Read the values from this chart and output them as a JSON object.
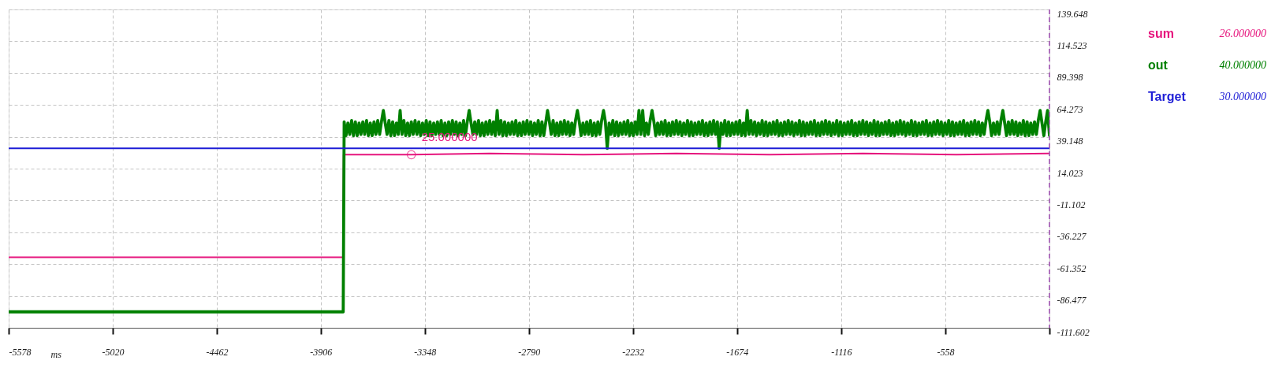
{
  "chart_data": {
    "type": "line",
    "xlabel": "ms",
    "xlim": [
      -5578,
      0
    ],
    "xticks": [
      -5578,
      -5020,
      -4462,
      -3906,
      -3348,
      -2790,
      -2232,
      -1674,
      -1116,
      -558,
      {
        "value": 0,
        "label": null
      }
    ],
    "ylim": [
      -111.602,
      139.648
    ],
    "yticks": [
      -111.602,
      -86.477,
      -61.352,
      -36.227,
      -11.102,
      14.023,
      39.148,
      64.273,
      89.398,
      114.523,
      139.648
    ],
    "grid": true,
    "legend": "right",
    "ref_lines": [
      {
        "axis": "x",
        "value": 0,
        "color": "#a355b5",
        "line_style": "dashed"
      }
    ],
    "annotations": [
      {
        "text": "25.000000",
        "x": -3420,
        "y": 25
      },
      "26.000000",
      "40.000000",
      "30.000000"
    ],
    "series": [
      {
        "name": "sum",
        "color": "#e6157d",
        "x": [
          -5578,
          -4700,
          -3786,
          -3783,
          -3420,
          -3000,
          -2500,
          -2000,
          -1500,
          -1000,
          -500,
          0
        ],
        "values": [
          -56,
          -56,
          -56,
          25,
          25,
          26,
          25,
          26,
          25,
          26,
          25,
          26
        ]
      },
      {
        "name": "out",
        "color": "#008000",
        "x": [
          -5578,
          -3785,
          -3780,
          -3770,
          -3760,
          -3750,
          -3740,
          -3730,
          -3720,
          -3710,
          -3700,
          -3690,
          -3680,
          -3670,
          -3660,
          -3650,
          -3640,
          -3630,
          -3620,
          -3610,
          -3600,
          -3590,
          -3580,
          -3570,
          -3560,
          -3550,
          -3540,
          -3530,
          -3520,
          -3510,
          -3500,
          -3490,
          -3480,
          -3470,
          -3460,
          -3450,
          -3440,
          -3430,
          -3420,
          -3410,
          -3400,
          -3390,
          -3380,
          -3370,
          -3360,
          -3350,
          -3340,
          -3330,
          -3320,
          -3310,
          -3300,
          -3290,
          -3280,
          -3270,
          -3260,
          -3250,
          -3240,
          -3230,
          -3220,
          -3210,
          -3200,
          -3190,
          -3180,
          -3170,
          -3160,
          -3150,
          -3140,
          -3130,
          -3120,
          -3110,
          -3100,
          -3090,
          -3080,
          -3070,
          -3060,
          -3050,
          -3040,
          -3030,
          -3020,
          -3010,
          -3000,
          -2990,
          -2980,
          -2970,
          -2960,
          -2950,
          -2940,
          -2930,
          -2920,
          -2910,
          -2900,
          -2890,
          -2880,
          -2870,
          -2860,
          -2850,
          -2840,
          -2830,
          -2820,
          -2810,
          -2800,
          -2790,
          -2780,
          -2770,
          -2760,
          -2750,
          -2740,
          -2730,
          -2720,
          -2710,
          -2700,
          -2690,
          -2680,
          -2670,
          -2660,
          -2650,
          -2640,
          -2630,
          -2620,
          -2610,
          -2600,
          -2590,
          -2580,
          -2570,
          -2560,
          -2550,
          -2540,
          -2530,
          -2520,
          -2510,
          -2500,
          -2490,
          -2480,
          -2470,
          -2460,
          -2450,
          -2440,
          -2430,
          -2420,
          -2410,
          -2400,
          -2390,
          -2380,
          -2370,
          -2360,
          -2350,
          -2340,
          -2330,
          -2320,
          -2310,
          -2300,
          -2290,
          -2280,
          -2270,
          -2260,
          -2250,
          -2240,
          -2230,
          -2220,
          -2210,
          -2200,
          -2190,
          -2180,
          -2170,
          -2160,
          -2150,
          -2140,
          -2130,
          -2120,
          -2110,
          -2100,
          -2090,
          -2080,
          -2070,
          -2060,
          -2050,
          -2040,
          -2030,
          -2020,
          -2010,
          -2000,
          -1990,
          -1980,
          -1970,
          -1960,
          -1950,
          -1940,
          -1930,
          -1920,
          -1910,
          -1900,
          -1890,
          -1880,
          -1870,
          -1860,
          -1850,
          -1840,
          -1830,
          -1820,
          -1810,
          -1800,
          -1790,
          -1780,
          -1770,
          -1760,
          -1750,
          -1740,
          -1730,
          -1720,
          -1710,
          -1700,
          -1690,
          -1680,
          -1670,
          -1660,
          -1650,
          -1640,
          -1630,
          -1620,
          -1610,
          -1600,
          -1590,
          -1580,
          -1570,
          -1560,
          -1550,
          -1540,
          -1530,
          -1520,
          -1510,
          -1500,
          -1490,
          -1480,
          -1470,
          -1460,
          -1450,
          -1440,
          -1430,
          -1420,
          -1410,
          -1400,
          -1390,
          -1380,
          -1370,
          -1360,
          -1350,
          -1340,
          -1330,
          -1320,
          -1310,
          -1300,
          -1290,
          -1280,
          -1270,
          -1260,
          -1250,
          -1240,
          -1230,
          -1220,
          -1210,
          -1200,
          -1190,
          -1180,
          -1170,
          -1160,
          -1150,
          -1140,
          -1130,
          -1120,
          -1110,
          -1100,
          -1090,
          -1080,
          -1070,
          -1060,
          -1050,
          -1040,
          -1030,
          -1020,
          -1010,
          -1000,
          -990,
          -980,
          -970,
          -960,
          -950,
          -940,
          -930,
          -920,
          -910,
          -900,
          -890,
          -880,
          -870,
          -860,
          -850,
          -840,
          -830,
          -820,
          -810,
          -800,
          -790,
          -780,
          -770,
          -760,
          -750,
          -740,
          -730,
          -720,
          -710,
          -700,
          -690,
          -680,
          -670,
          -660,
          -650,
          -640,
          -630,
          -620,
          -610,
          -600,
          -590,
          -580,
          -570,
          -560,
          -550,
          -540,
          -530,
          -520,
          -510,
          -500,
          -490,
          -480,
          -470,
          -460,
          -450,
          -440,
          -430,
          -420,
          -410,
          -400,
          -390,
          -380,
          -370,
          -360,
          -350,
          -340,
          -330,
          -320,
          -310,
          -300,
          -290,
          -280,
          -270,
          -260,
          -250,
          -240,
          -230,
          -220,
          -210,
          -200,
          -190,
          -180,
          -170,
          -160,
          -150,
          -140,
          -130,
          -120,
          -110,
          -100,
          -90,
          -80,
          -70,
          -60,
          -50,
          -40,
          -30,
          -20,
          -10,
          0
        ],
        "values": [
          -99,
          -99,
          51,
          40,
          50,
          41,
          52,
          40,
          51,
          40,
          50,
          41,
          51,
          41,
          52,
          40,
          50,
          40,
          51,
          41,
          52,
          41,
          51,
          60,
          50,
          41,
          52,
          40,
          51,
          40,
          50,
          41,
          60,
          41,
          52,
          40,
          50,
          40,
          51,
          41,
          52,
          41,
          51,
          40,
          50,
          41,
          52,
          40,
          51,
          40,
          50,
          41,
          51,
          41,
          52,
          40,
          50,
          40,
          51,
          41,
          52,
          41,
          51,
          40,
          50,
          41,
          52,
          40,
          51,
          60,
          50,
          41,
          51,
          41,
          52,
          40,
          50,
          40,
          51,
          41,
          52,
          41,
          51,
          40,
          60,
          41,
          52,
          40,
          51,
          40,
          50,
          41,
          51,
          41,
          52,
          40,
          50,
          40,
          51,
          41,
          52,
          41,
          51,
          40,
          50,
          41,
          52,
          40,
          51,
          40,
          50,
          60,
          51,
          41,
          52,
          40,
          50,
          40,
          51,
          41,
          52,
          41,
          51,
          40,
          50,
          41,
          52,
          60,
          51,
          40,
          50,
          41,
          51,
          41,
          52,
          40,
          50,
          40,
          51,
          41,
          52,
          60,
          51,
          30,
          50,
          41,
          52,
          40,
          51,
          40,
          50,
          41,
          51,
          41,
          52,
          40,
          50,
          40,
          51,
          41,
          60,
          41,
          60,
          40,
          50,
          41,
          52,
          60,
          51,
          40,
          50,
          41,
          51,
          41,
          52,
          40,
          50,
          40,
          51,
          41,
          52,
          41,
          51,
          40,
          50,
          41,
          52,
          40,
          51,
          40,
          50,
          41,
          51,
          41,
          52,
          40,
          50,
          40,
          51,
          41,
          52,
          41,
          51,
          30,
          50,
          41,
          52,
          40,
          51,
          40,
          50,
          41,
          51,
          41,
          52,
          40,
          50,
          40,
          60,
          41,
          52,
          41,
          51,
          40,
          50,
          41,
          52,
          40,
          51,
          40,
          50,
          41,
          51,
          41,
          52,
          40,
          50,
          40,
          51,
          41,
          52,
          41,
          51,
          40,
          50,
          41,
          52,
          40,
          51,
          40,
          50,
          41,
          51,
          41,
          52,
          40,
          50,
          40,
          51,
          41,
          52,
          41,
          51,
          40,
          50,
          41,
          52,
          40,
          51,
          40,
          50,
          41,
          51,
          41,
          52,
          40,
          50,
          40,
          51,
          41,
          52,
          41,
          51,
          40,
          50,
          41,
          52,
          40,
          51,
          40,
          50,
          41,
          51,
          41,
          52,
          40,
          50,
          40,
          51,
          41,
          52,
          41,
          51,
          40,
          50,
          41,
          52,
          40,
          51,
          40,
          50,
          41,
          51,
          41,
          52,
          40,
          50,
          40,
          51,
          41,
          52,
          41,
          51,
          40,
          50,
          41,
          52,
          40,
          51,
          40,
          50,
          41,
          51,
          41,
          52,
          40,
          50,
          40,
          51,
          41,
          52,
          41,
          51,
          40,
          50,
          41,
          52,
          60,
          51,
          40,
          50,
          41,
          51,
          41,
          52,
          60,
          50,
          40,
          51,
          41,
          52,
          41,
          51,
          40,
          50,
          41,
          52,
          40,
          51,
          40,
          50,
          41,
          51,
          41,
          52,
          60,
          50,
          40,
          51,
          60,
          40
        ]
      },
      {
        "name": "Target",
        "color": "#1d1dd6",
        "x": [
          -5578,
          0
        ],
        "values": [
          30,
          30
        ]
      }
    ]
  }
}
